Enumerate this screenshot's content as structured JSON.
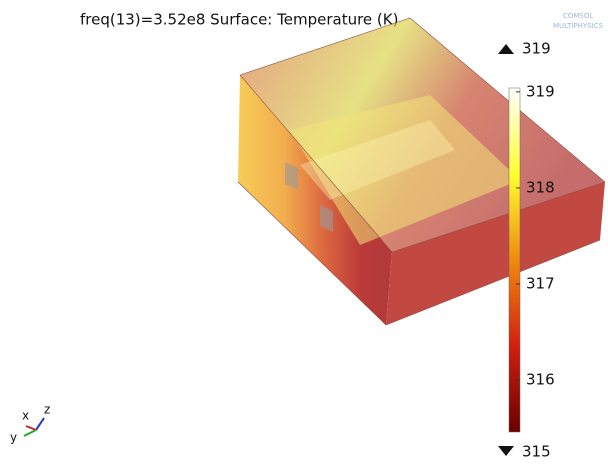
{
  "title": "freq(13)=3.52e8   Surface: Temperature (K)",
  "colorbar": {
    "range": [
      315.46,
      319.04
    ],
    "ticks": [
      316,
      317,
      318,
      319
    ]
  },
  "max_label": 319,
  "min_label": 315,
  "axes": {
    "x": "x",
    "y": "y",
    "z": "z"
  },
  "logo": [
    "COMSOL",
    "MULTIPHYSICS"
  ]
}
